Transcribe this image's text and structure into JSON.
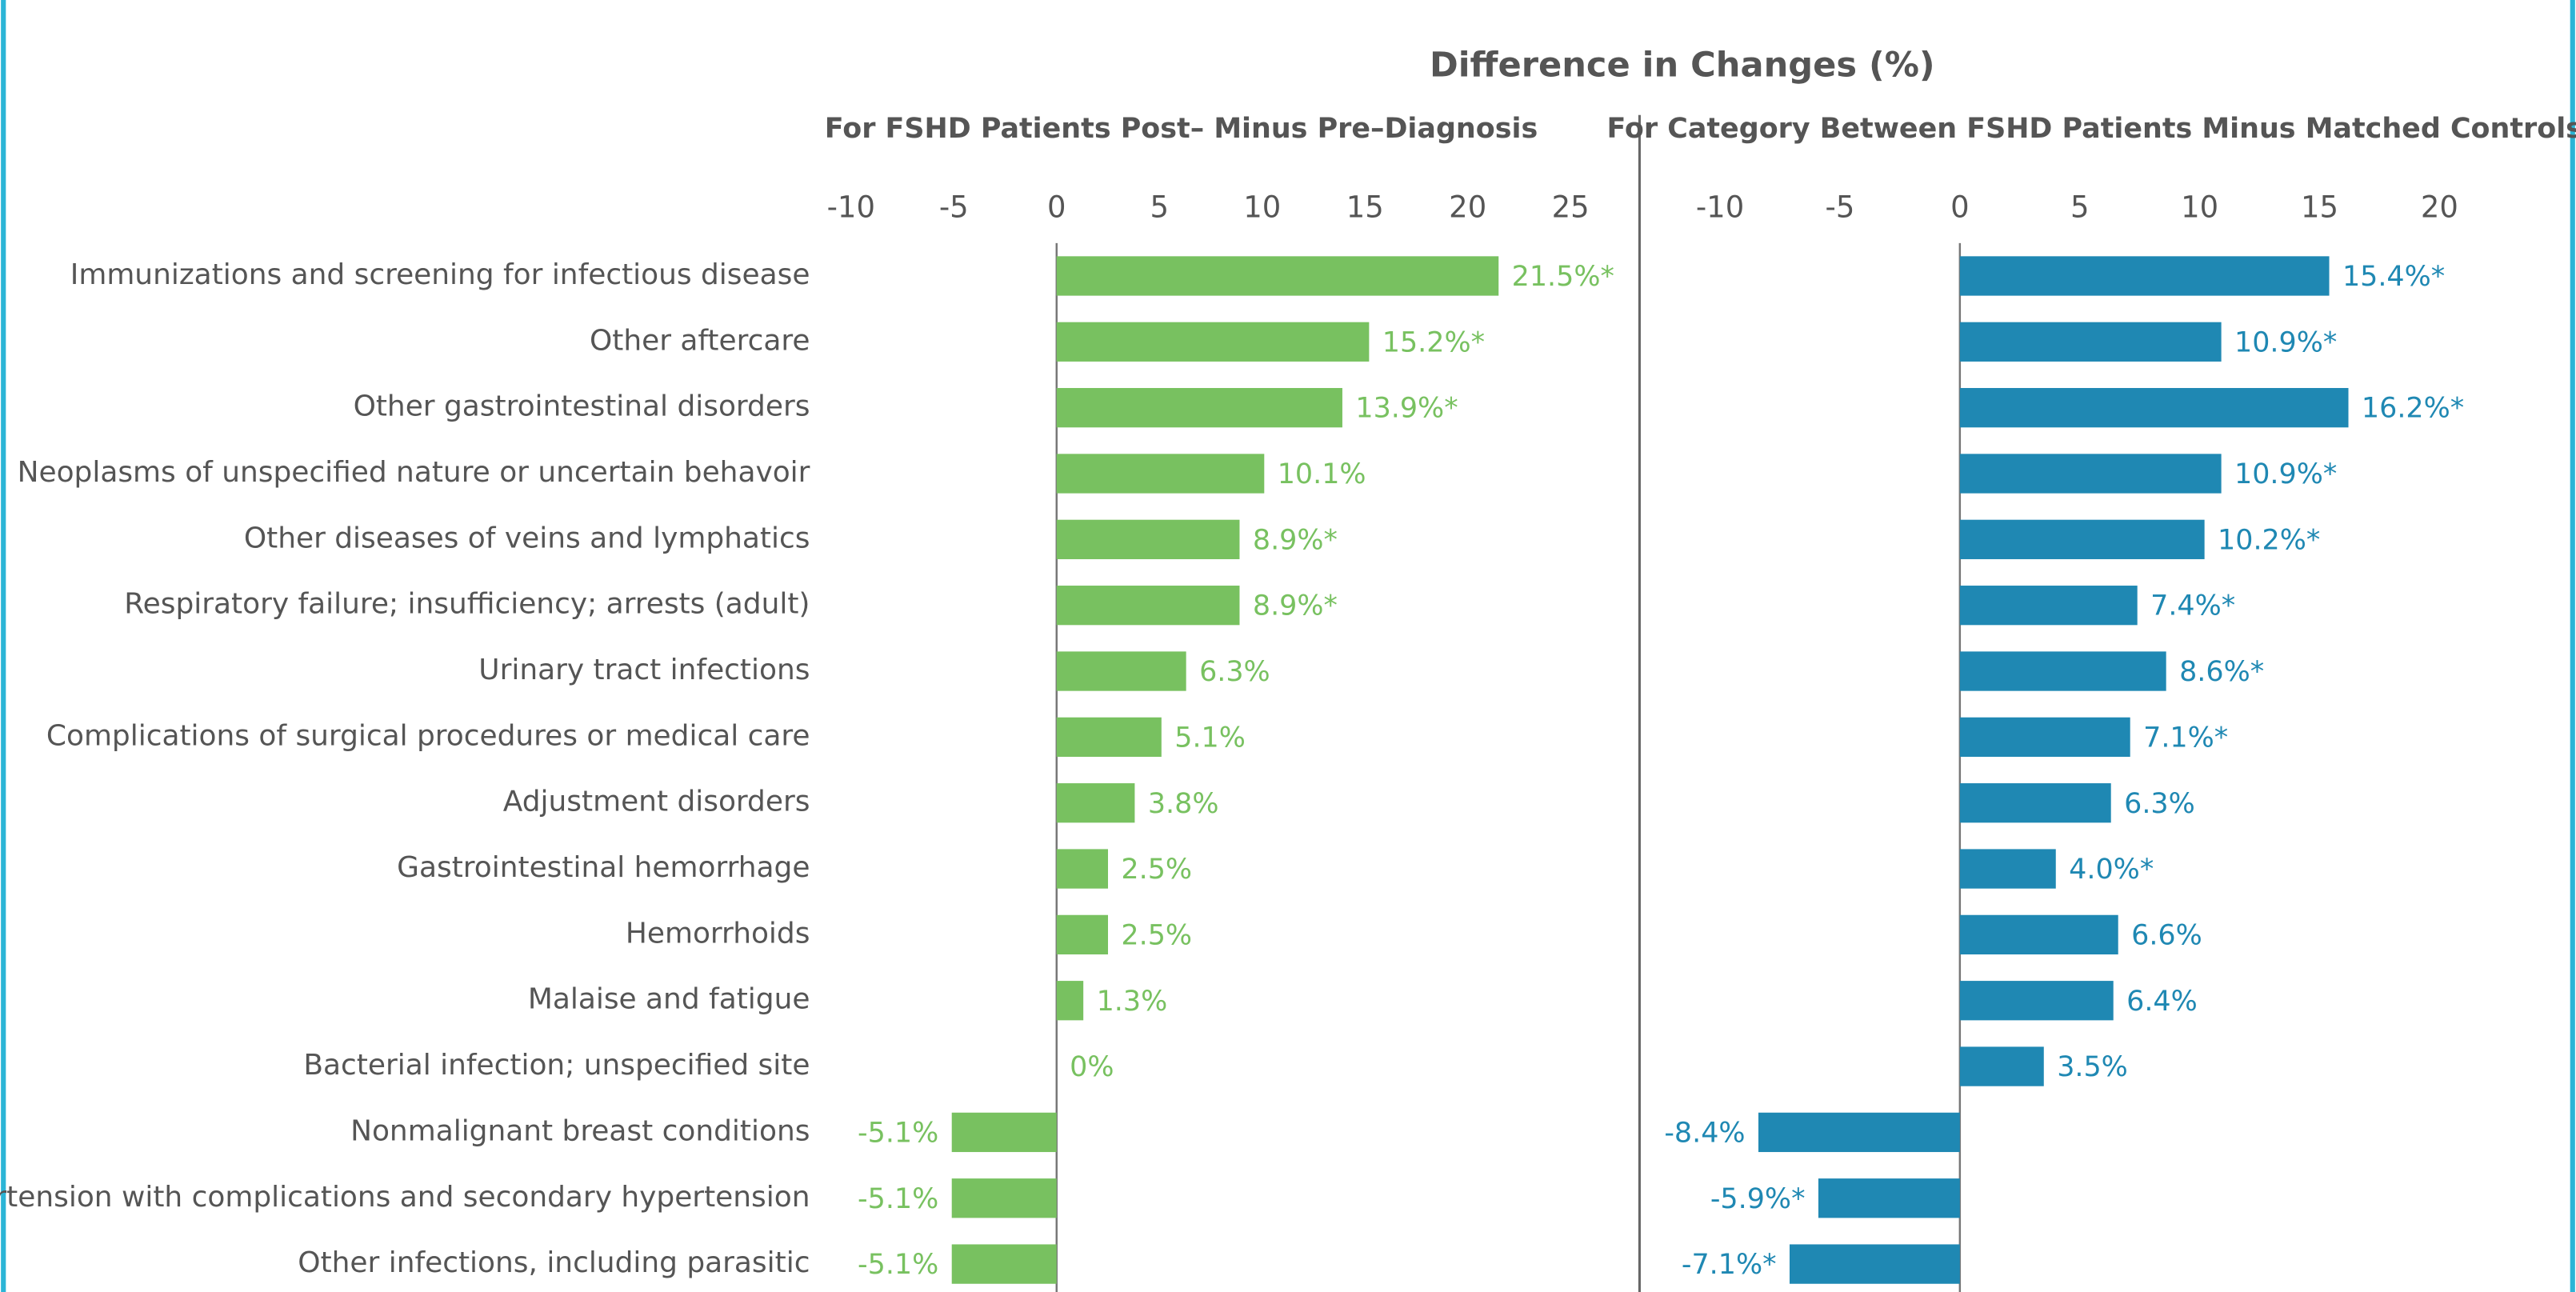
{
  "title": "Difference in Changes (%)",
  "chart_data": [
    {
      "type": "hbar",
      "subtitle": "For FSHD Patients Post– Minus Pre–Diagnosis",
      "categories": [
        "Immunizations and screening for infectious disease",
        "Other aftercare",
        "Other gastrointestinal disorders",
        "Neoplasms of unspecified nature or uncertain behavoir",
        "Other diseases of veins and lymphatics",
        "Respiratory failure; insufficiency; arrests (adult)",
        "Urinary tract infections",
        "Complications of surgical procedures or medical care",
        "Adjustment disorders",
        "Gastrointestinal hemorrhage",
        "Hemorrhoids",
        "Malaise and fatigue",
        "Bacterial infection; unspecified site",
        "Nonmalignant breast conditions",
        "Hypertension with complications and secondary hypertension",
        "Other infections, including parasitic"
      ],
      "values": [
        21.5,
        15.2,
        13.9,
        10.1,
        8.9,
        8.9,
        6.3,
        5.1,
        3.8,
        2.5,
        2.5,
        1.3,
        0,
        -5.1,
        -5.1,
        -5.1
      ],
      "value_labels": [
        "21.5%*",
        "15.2%*",
        "13.9%*",
        "10.1%",
        "8.9%*",
        "8.9%*",
        "6.3%",
        "5.1%",
        "3.8%",
        "2.5%",
        "2.5%",
        "1.3%",
        "0%",
        "-5.1%",
        "-5.1%",
        "-5.1%"
      ],
      "color": "#78c160",
      "xlim": [
        -10,
        25
      ],
      "xticks": [
        -10,
        -5,
        0,
        5,
        10,
        15,
        20,
        25
      ]
    },
    {
      "type": "hbar",
      "subtitle": "For Category Between FSHD Patients Minus Matched Controls",
      "values": [
        15.4,
        10.9,
        16.2,
        10.9,
        10.2,
        7.4,
        8.6,
        7.1,
        6.3,
        4.0,
        6.6,
        6.4,
        3.5,
        -8.4,
        -5.9,
        -7.1
      ],
      "value_labels": [
        "15.4%*",
        "10.9%*",
        "16.2%*",
        "10.9%*",
        "10.2%*",
        "7.4%*",
        "8.6%*",
        "7.1%*",
        "6.3%",
        "4.0%*",
        "6.6%",
        "6.4%",
        "3.5%",
        "-8.4%",
        "-5.9%*",
        "-7.1%*"
      ],
      "color": "#1f88b3",
      "xlim": [
        -10,
        20
      ],
      "xticks": [
        -10,
        -5,
        0,
        5,
        10,
        15,
        20
      ]
    }
  ]
}
